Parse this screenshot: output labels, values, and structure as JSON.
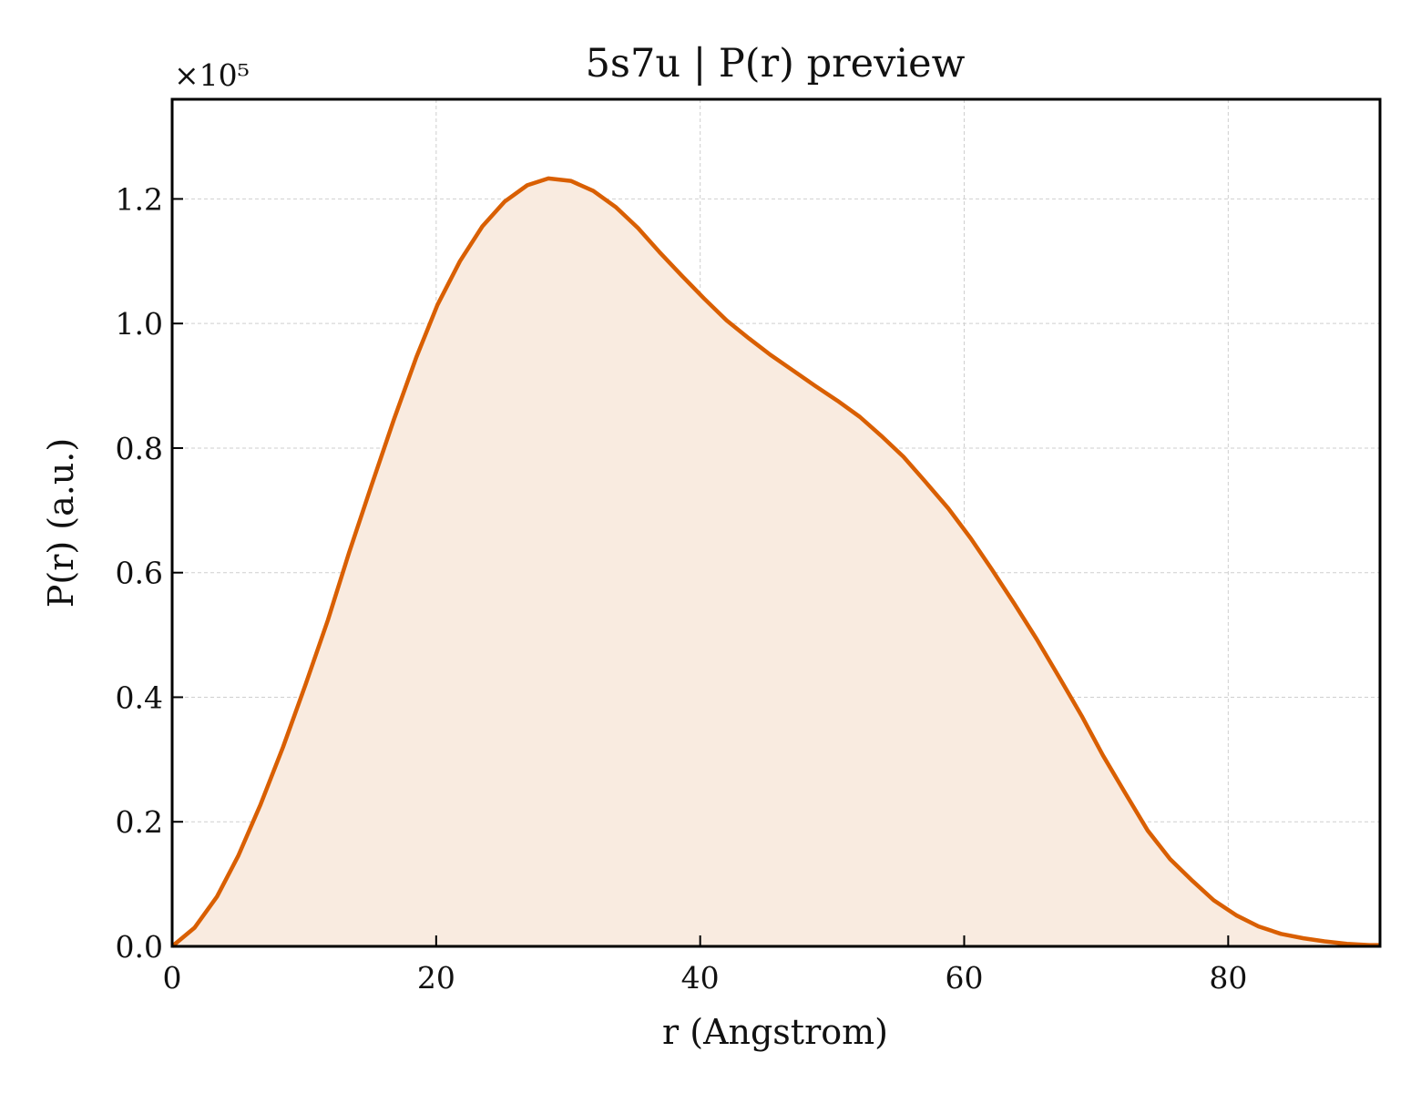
{
  "chart_data": {
    "type": "area",
    "title": "5s7u | P(r) preview",
    "xlabel": "r (Angstrom)",
    "ylabel": "P(r) (a.u.)",
    "y_multiplier": "×10⁵",
    "xlim": [
      0,
      91.5
    ],
    "ylim": [
      0,
      1.36
    ],
    "xticks": [
      0,
      20,
      40,
      60,
      80
    ],
    "xtick_labels": [
      "0",
      "20",
      "40",
      "60",
      "80"
    ],
    "yticks": [
      0.0,
      0.2,
      0.4,
      0.6,
      0.8,
      1.0,
      1.2
    ],
    "ytick_labels": [
      "0.0",
      "0.2",
      "0.4",
      "0.6",
      "0.8",
      "1.0",
      "1.2"
    ],
    "grid": true,
    "line_color": "#d95f02",
    "fill_color": "#f9ebe0",
    "series": [
      {
        "x": [
          0,
          1.7,
          3.4,
          5.0,
          6.7,
          8.4,
          10.1,
          11.8,
          13.4,
          15.1,
          16.8,
          18.5,
          20.1,
          21.8,
          23.5,
          25.2,
          26.9,
          28.5,
          30.2,
          31.9,
          33.6,
          35.3,
          36.9,
          38.6,
          40.3,
          42.0,
          43.7,
          45.3,
          47.0,
          48.7,
          50.4,
          52.1,
          53.7,
          55.4,
          57.1,
          58.8,
          60.5,
          62.1,
          63.8,
          65.5,
          67.2,
          68.9,
          70.5,
          72.2,
          73.9,
          75.6,
          77.3,
          78.9,
          80.6,
          82.3,
          84.0,
          85.7,
          87.3,
          89.0,
          90.7,
          91.5
        ],
        "y": [
          0.0,
          0.03,
          0.08,
          0.145,
          0.228,
          0.32,
          0.42,
          0.524,
          0.632,
          0.74,
          0.846,
          0.946,
          1.03,
          1.1,
          1.156,
          1.196,
          1.222,
          1.233,
          1.229,
          1.213,
          1.187,
          1.153,
          1.115,
          1.077,
          1.04,
          1.005,
          0.976,
          0.95,
          0.925,
          0.9,
          0.876,
          0.85,
          0.82,
          0.786,
          0.745,
          0.703,
          0.655,
          0.605,
          0.55,
          0.493,
          0.432,
          0.37,
          0.307,
          0.246,
          0.186,
          0.14,
          0.105,
          0.074,
          0.05,
          0.032,
          0.02,
          0.013,
          0.008,
          0.004,
          0.002,
          0.002
        ]
      }
    ]
  }
}
